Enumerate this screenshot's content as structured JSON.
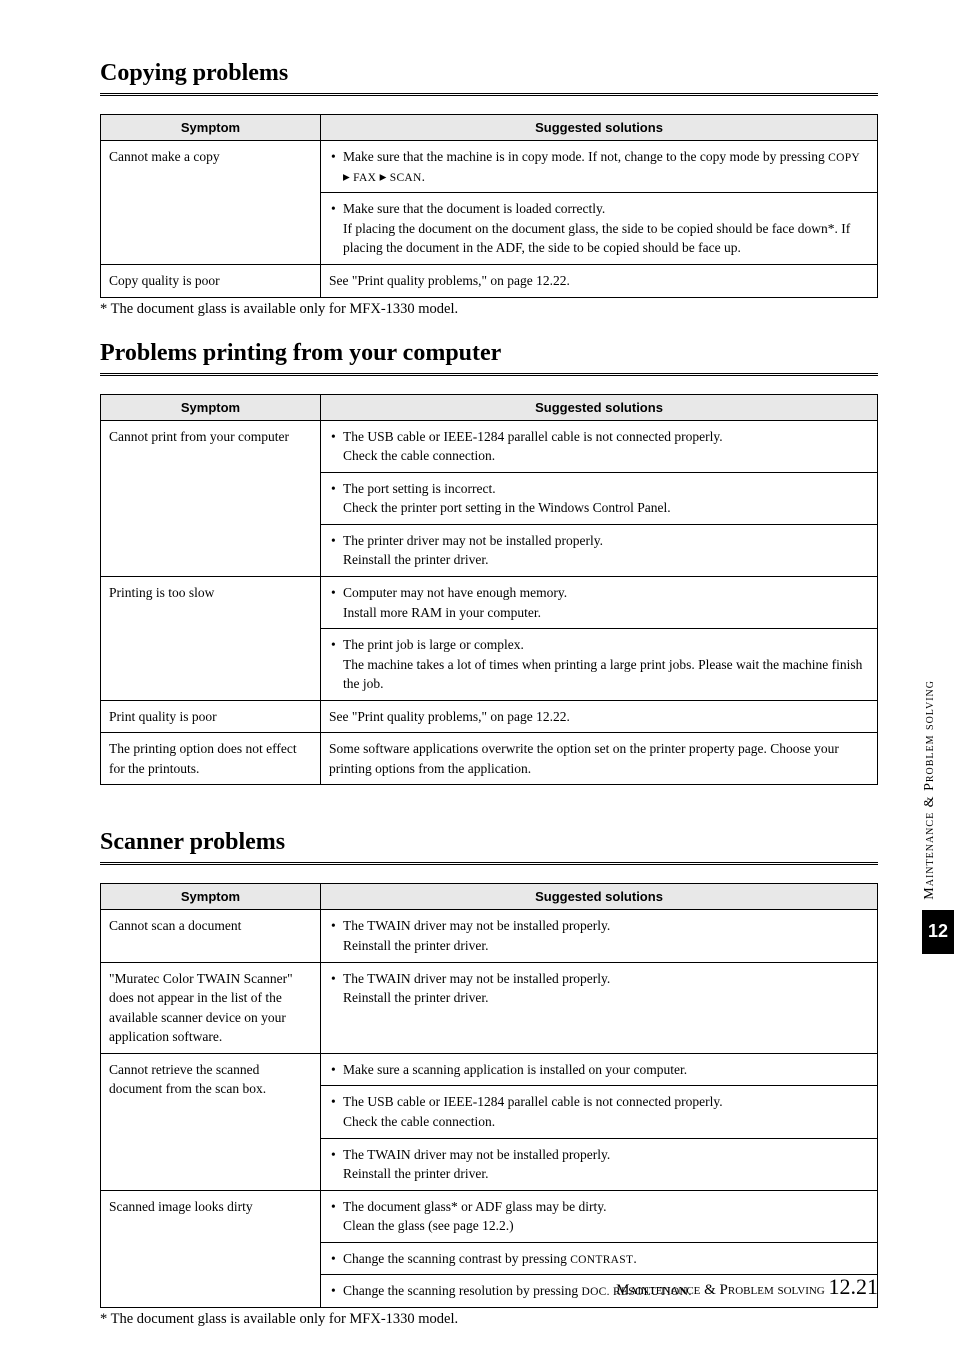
{
  "sections": {
    "copying": {
      "title": "Copying problems",
      "headers": [
        "Symptom",
        "Suggested solutions"
      ],
      "rows": [
        {
          "symptom": "Cannot make a copy",
          "solutions_bulleted": true,
          "solutions": [
            {
              "lead": "Make sure that the machine is in copy mode. If not, change to the copy mode by pressing ",
              "sc1": "COPY",
              "mid1": " ▸ ",
              "sc2": "FAX",
              "mid2": " ▸ ",
              "sc3": "SCAN",
              "tail": "."
            },
            {
              "text": "Make sure that the document is loaded correctly.\nIf placing the document on the document glass, the side to be copied should be face down*. If placing the document in the ADF, the side to be copied should be face up."
            }
          ]
        },
        {
          "symptom": "Copy quality is poor",
          "solutions_bulleted": false,
          "solutions": [
            {
              "text": "See \"Print quality problems,\" on page 12.22."
            }
          ]
        }
      ],
      "footnote": "* The document glass is available only for MFX-1330 model."
    },
    "printing": {
      "title": "Problems printing from your computer",
      "headers": [
        "Symptom",
        "Suggested solutions"
      ],
      "rows": [
        {
          "symptom": "Cannot print from your computer",
          "solutions_bulleted": true,
          "solutions": [
            {
              "text": "The USB cable or IEEE-1284 parallel cable is not connected properly.\nCheck the cable connection."
            },
            {
              "text": "The port setting is incorrect.\nCheck the printer port setting in the Windows Control Panel."
            },
            {
              "text": "The printer driver may not be installed properly.\nReinstall the printer driver."
            }
          ]
        },
        {
          "symptom": "Printing is too slow",
          "solutions_bulleted": true,
          "solutions": [
            {
              "text": "Computer may not have enough memory.\nInstall more RAM in your computer."
            },
            {
              "text": "The print job is large or complex.\nThe machine takes a lot of times when printing a large print jobs. Please wait the machine finish the job."
            }
          ]
        },
        {
          "symptom": "Print quality is poor",
          "solutions_bulleted": false,
          "solutions": [
            {
              "text": "See \"Print quality problems,\" on page 12.22."
            }
          ]
        },
        {
          "symptom": "The printing option does not effect for the printouts.",
          "solutions_bulleted": false,
          "solutions": [
            {
              "text": "Some software applications overwrite the option set on the printer property page. Choose your printing options from the application."
            }
          ]
        }
      ]
    },
    "scanner": {
      "title": "Scanner problems",
      "headers": [
        "Symptom",
        "Suggested solutions"
      ],
      "rows": [
        {
          "symptom": "Cannot scan a document",
          "solutions_bulleted": true,
          "solutions": [
            {
              "text": "The TWAIN driver may not be installed properly.\nReinstall the printer driver."
            }
          ]
        },
        {
          "symptom": "\"Muratec Color TWAIN Scanner\" does not appear in the list of the available scanner device on your application software.",
          "solutions_bulleted": true,
          "solutions": [
            {
              "text": "The TWAIN driver may not be installed properly.\nReinstall the printer driver."
            }
          ]
        },
        {
          "symptom": "Cannot retrieve the scanned document from the scan box.",
          "solutions_bulleted": true,
          "solutions": [
            {
              "text": "Make sure a scanning application is installed on your computer."
            },
            {
              "text": "The USB cable or IEEE-1284 parallel cable is not connected properly.\nCheck the cable connection."
            },
            {
              "text": "The TWAIN driver may not be installed properly.\nReinstall the printer driver."
            }
          ]
        },
        {
          "symptom": "Scanned image looks dirty",
          "solutions_bulleted": true,
          "solutions": [
            {
              "text": "The document glass* or ADF glass may be dirty.\nClean the glass (see page 12.2.)"
            },
            {
              "lead": "Change the scanning contrast by pressing ",
              "sc1": "CONTRAST",
              "tail": "."
            },
            {
              "lead": "Change the scanning resolution by pressing ",
              "sc1": "DOC. RESOLUTION",
              "tail": "."
            }
          ]
        }
      ],
      "footnote": "* The document glass is available only for MFX-1330 model."
    }
  },
  "sidebar": {
    "label": "Maintenance & Problem solving",
    "chapter": "12"
  },
  "footer": {
    "text": "Maintenance & Problem solving",
    "page": "12.21"
  },
  "colors": {
    "header_bg": "#e8e8e8",
    "border": "#000000",
    "tab_bg": "#000000",
    "tab_fg": "#ffffff"
  }
}
